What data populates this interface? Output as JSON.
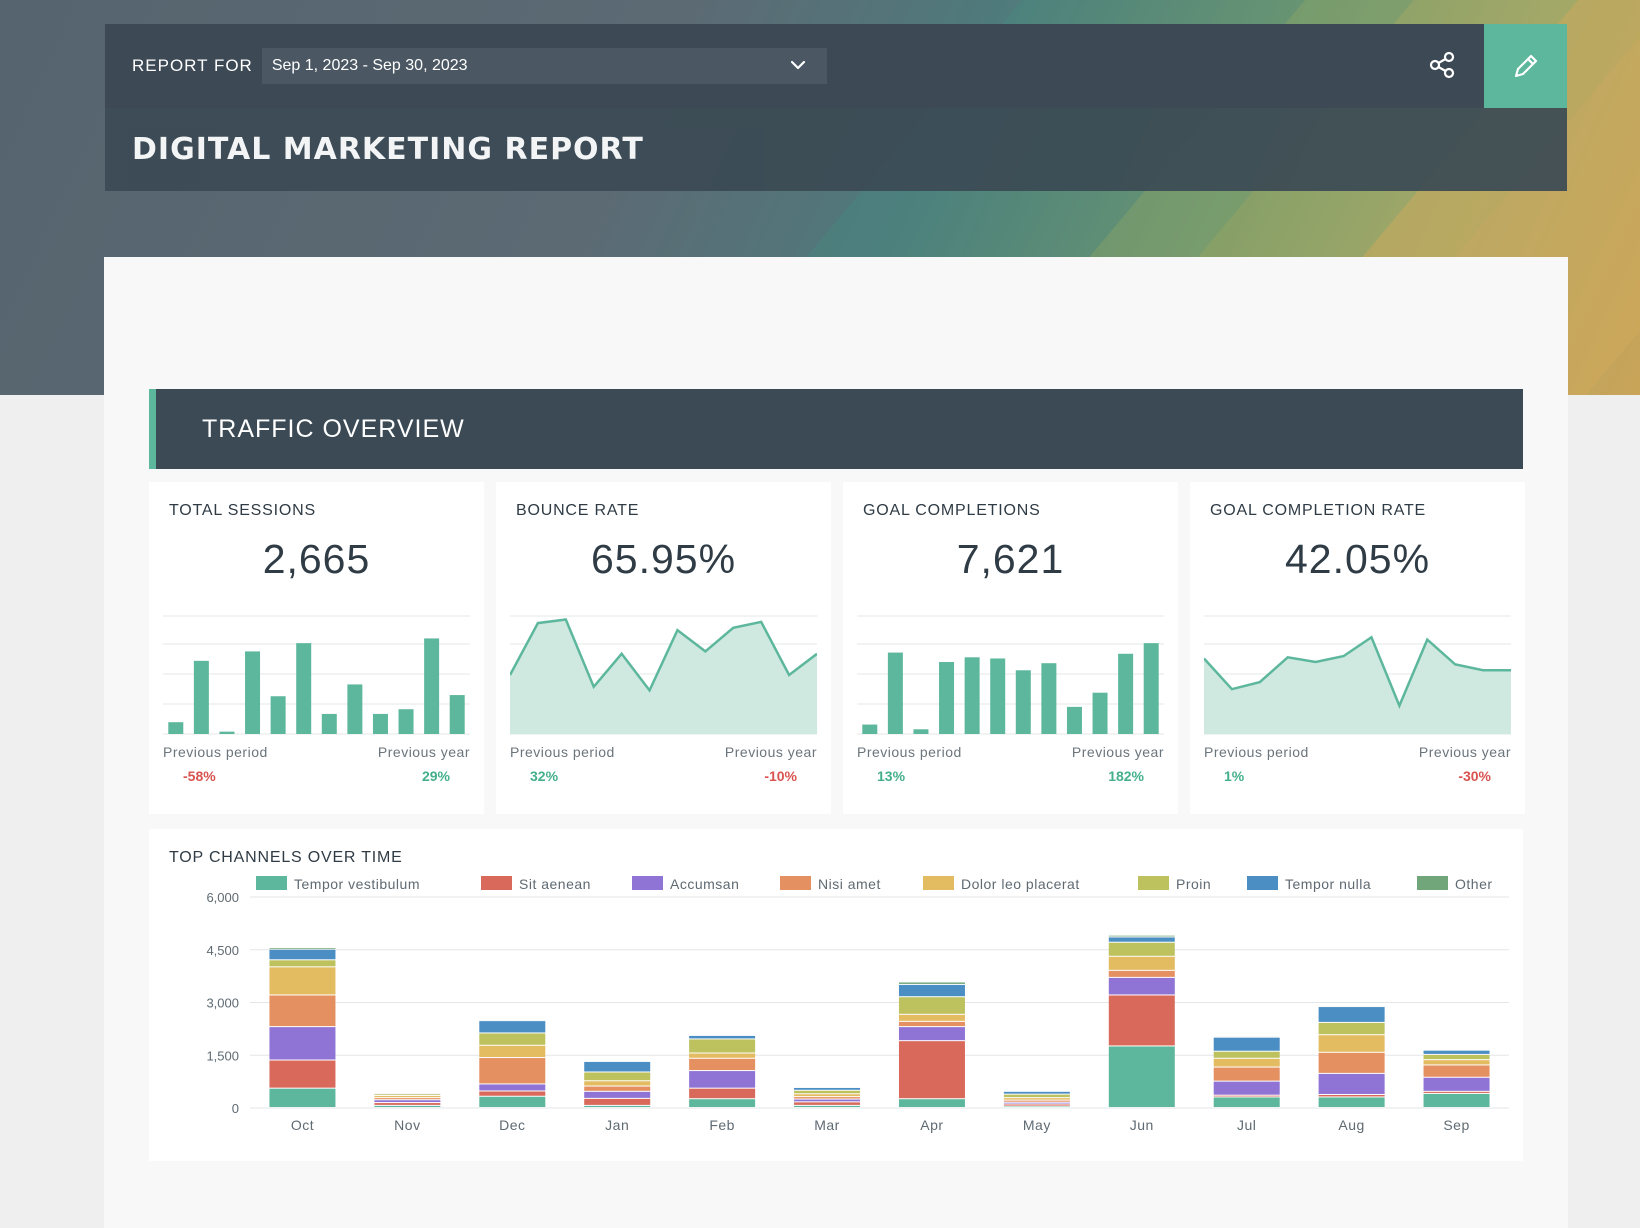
{
  "header": {
    "report_for_label": "REPORT FOR",
    "date_range": "Sep 1, 2023 - Sep 30, 2023",
    "title": "DIGITAL MARKETING REPORT"
  },
  "section": {
    "title": "TRAFFIC OVERVIEW"
  },
  "colors": {
    "accent": "#5db79c",
    "negative": "#d9534f",
    "positive": "#43b08a",
    "dark": "#3b4a54"
  },
  "kpis": [
    {
      "title": "TOTAL SESSIONS",
      "value": "2,665",
      "prev_period_label": "Previous period",
      "prev_year_label": "Previous year",
      "prev_period": "-58%",
      "prev_year": "29%",
      "spark_type": "bar",
      "spark": [
        10,
        62,
        2,
        70,
        32,
        77,
        17,
        42,
        17,
        21,
        81,
        33
      ]
    },
    {
      "title": "BOUNCE RATE",
      "value": "65.95%",
      "prev_period_label": "Previous period",
      "prev_year_label": "Previous year",
      "prev_period": "32%",
      "prev_year": "-10%",
      "spark_type": "area",
      "spark": [
        50,
        94,
        97,
        40,
        68,
        37,
        88,
        70,
        90,
        95,
        50,
        68
      ]
    },
    {
      "title": "GOAL COMPLETIONS",
      "value": "7,621",
      "prev_period_label": "Previous period",
      "prev_year_label": "Previous year",
      "prev_period": "13%",
      "prev_year": "182%",
      "spark_type": "bar",
      "spark": [
        8,
        69,
        4,
        61,
        65,
        64,
        54,
        60,
        23,
        35,
        68,
        77
      ]
    },
    {
      "title": "GOAL COMPLETION RATE",
      "value": "42.05%",
      "prev_period_label": "Previous period",
      "prev_year_label": "Previous year",
      "prev_period": "1%",
      "prev_year": "-30%",
      "spark_type": "area",
      "spark": [
        64,
        38,
        44,
        65,
        61,
        66,
        82,
        24,
        80,
        59,
        54,
        54
      ]
    }
  ],
  "chart_data": {
    "type": "bar",
    "stacked": true,
    "title": "TOP CHANNELS OVER TIME",
    "categories": [
      "Oct",
      "Nov",
      "Dec",
      "Jan",
      "Feb",
      "Mar",
      "Apr",
      "May",
      "Jun",
      "Jul",
      "Aug",
      "Sep"
    ],
    "ylim": [
      0,
      6000
    ],
    "yticks": [
      "6,000",
      "4,500",
      "3,000",
      "1,500",
      "0"
    ],
    "series": [
      {
        "name": "Tempor vestibulum",
        "color": "#5db79c",
        "values": [
          550,
          60,
          320,
          60,
          250,
          60,
          250,
          40,
          1750,
          300,
          300,
          400
        ]
      },
      {
        "name": "Sit aenean",
        "color": "#d9695a",
        "values": [
          800,
          80,
          150,
          200,
          300,
          100,
          1650,
          60,
          1450,
          50,
          70,
          60
        ]
      },
      {
        "name": "Accumsan",
        "color": "#8f74d6",
        "values": [
          950,
          80,
          200,
          200,
          500,
          80,
          400,
          50,
          500,
          400,
          600,
          400
        ]
      },
      {
        "name": "Nisi amet",
        "color": "#e59060",
        "values": [
          900,
          60,
          750,
          150,
          350,
          70,
          150,
          60,
          200,
          400,
          600,
          350
        ]
      },
      {
        "name": "Dolor leo placerat",
        "color": "#e3bb60",
        "values": [
          800,
          60,
          350,
          150,
          150,
          80,
          200,
          70,
          400,
          250,
          500,
          150
        ]
      },
      {
        "name": "Proin",
        "color": "#bdc15e",
        "values": [
          200,
          50,
          350,
          250,
          400,
          100,
          500,
          100,
          400,
          200,
          350,
          150
        ]
      },
      {
        "name": "Tempor nulla",
        "color": "#4a8ec4",
        "values": [
          300,
          30,
          350,
          300,
          100,
          80,
          350,
          80,
          150,
          400,
          450,
          120
        ]
      },
      {
        "name": "Other",
        "color": "#70a67a",
        "values": [
          50,
          10,
          30,
          20,
          20,
          20,
          70,
          10,
          50,
          30,
          30,
          20
        ]
      }
    ]
  }
}
